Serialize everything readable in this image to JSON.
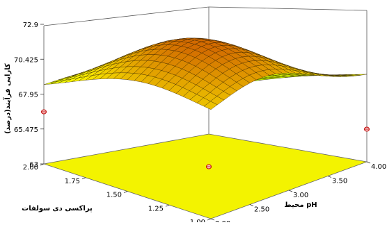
{
  "chart_data": {
    "type": "surface3d",
    "title": "",
    "zlabel": "کارایی فرآیند(درصد)",
    "xlabel": "pH محیط",
    "ylabel": "پراکسی دی سولفات",
    "x_range": [
      2.0,
      4.0
    ],
    "y_range": [
      1.0,
      2.0
    ],
    "zlim": [
      63,
      72.9
    ],
    "x_ticks": [
      "2.00",
      "2.50",
      "3.00",
      "3.50",
      "4.00"
    ],
    "y_ticks": [
      "1.00",
      "1.25",
      "1.50",
      "1.75",
      "2.00"
    ],
    "z_ticks": [
      "63",
      "65.475",
      "67.95",
      "70.425",
      "72.9"
    ],
    "corner_values": [
      {
        "pH": 2.0,
        "persulfate": 1.0,
        "efficiency": 69.6
      },
      {
        "pH": 2.0,
        "persulfate": 2.0,
        "efficiency": 67.8
      },
      {
        "pH": 4.0,
        "persulfate": 2.0,
        "efficiency": 66.2
      },
      {
        "pH": 4.0,
        "persulfate": 1.0,
        "efficiency": 69.0
      }
    ],
    "peak": {
      "pH": 2.7,
      "persulfate": 1.45,
      "efficiency": 72.9
    },
    "grid_lines": 24,
    "colors": {
      "low": "#6fe000",
      "mid": "#ffff00",
      "high": "#d26a00",
      "floor": "#f3f300",
      "mesh": "#2a1a00"
    }
  }
}
